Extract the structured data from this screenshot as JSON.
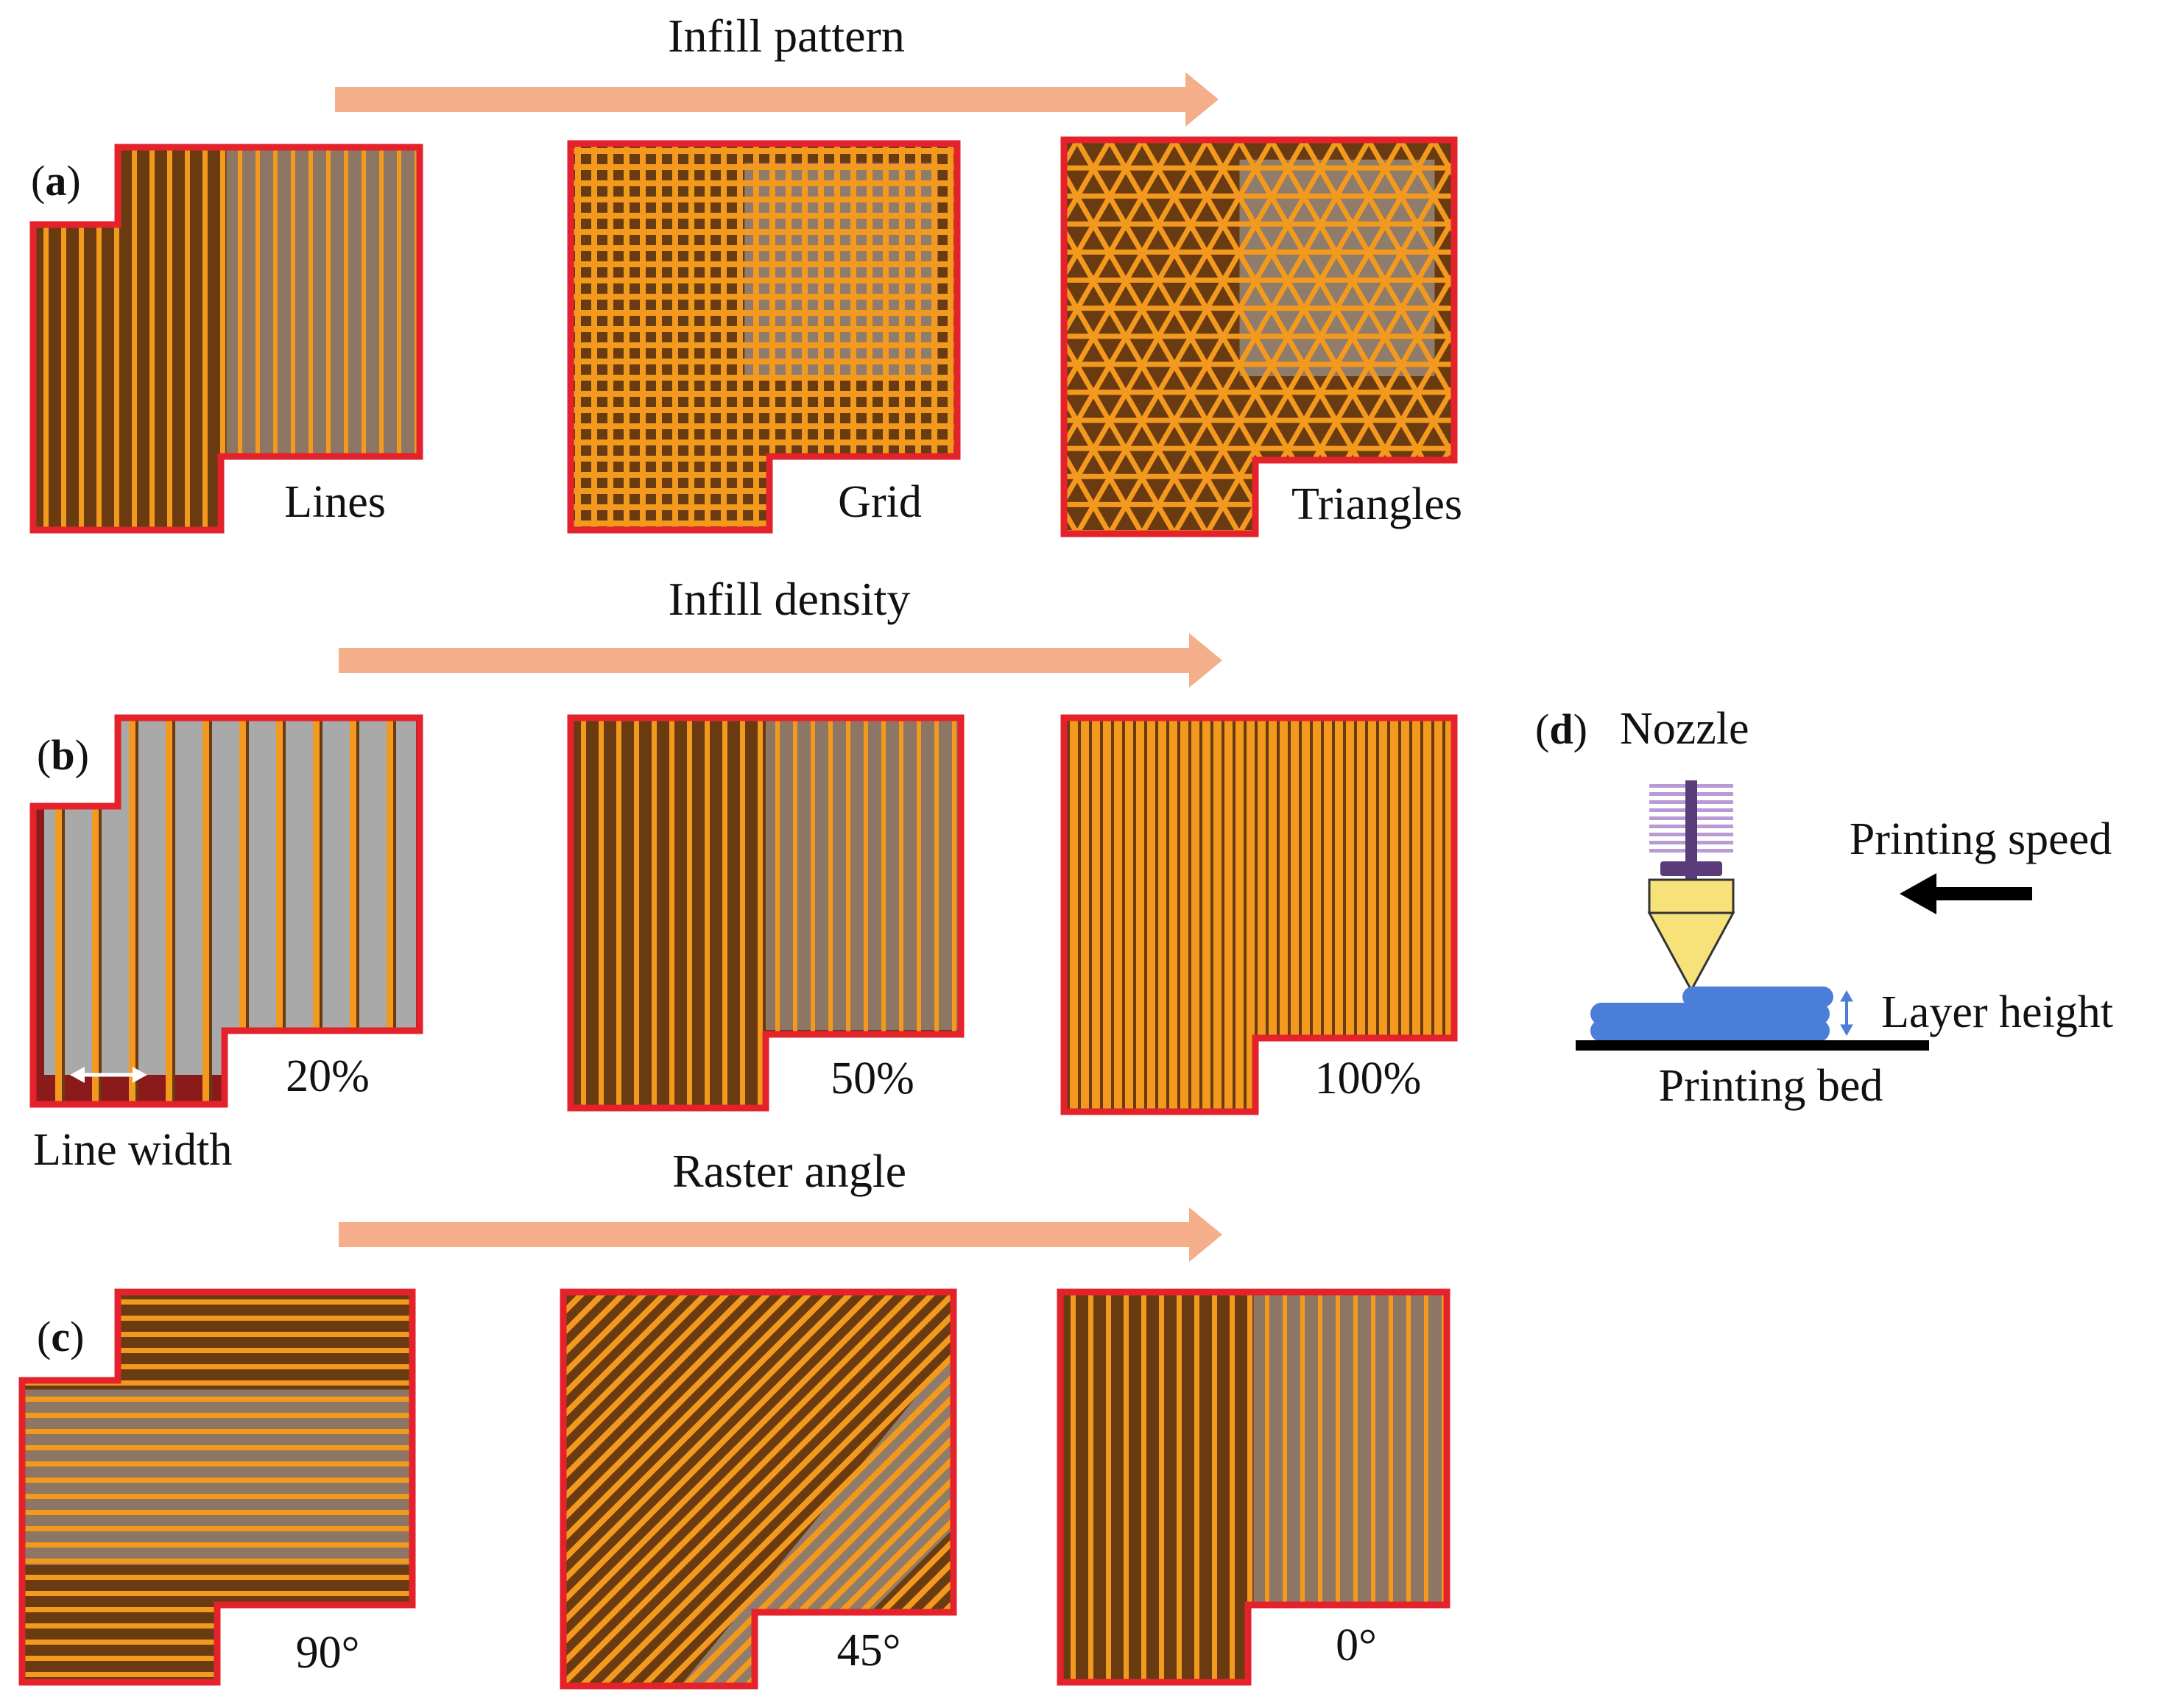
{
  "rows": {
    "a": {
      "letter": "a",
      "title": "Infill pattern",
      "panels": [
        {
          "pattern": "lines",
          "caption": "Lines"
        },
        {
          "pattern": "grid",
          "caption": "Grid"
        },
        {
          "pattern": "triangles",
          "caption": "Triangles"
        }
      ]
    },
    "b": {
      "letter": "b",
      "title": "Infill density",
      "panels": [
        {
          "pattern": "lines-sparse",
          "caption": "20%",
          "density": 0.2
        },
        {
          "pattern": "lines-medium",
          "caption": "50%",
          "density": 0.5
        },
        {
          "pattern": "lines-full",
          "caption": "100%",
          "density": 1.0
        }
      ],
      "line_width_label": "Line width"
    },
    "c": {
      "letter": "c",
      "title": "Raster angle",
      "panels": [
        {
          "pattern": "lines-horizontal",
          "caption": "90°"
        },
        {
          "pattern": "lines-diagonal",
          "caption": "45°"
        },
        {
          "pattern": "lines-vertical",
          "caption": "0°"
        }
      ]
    },
    "d": {
      "letter": "d",
      "nozzle_label": "Nozzle",
      "speed_label": "Printing speed",
      "layer_label": "Layer height",
      "bed_label": "Printing bed"
    }
  },
  "colors": {
    "arrow": "#f4ae8a",
    "outline": "#e4222b",
    "shadow": "#8b1a1a",
    "filament": "#f39a1e",
    "dark_fill": "#6a3a10",
    "gap_fill": "#a9a9a9",
    "nozzle_body": "#f7e27a",
    "nozzle_stem": "#5b3c7a",
    "nozzle_fins": "#b79ad6",
    "layer": "#4a7ed8",
    "bed": "#000000"
  }
}
